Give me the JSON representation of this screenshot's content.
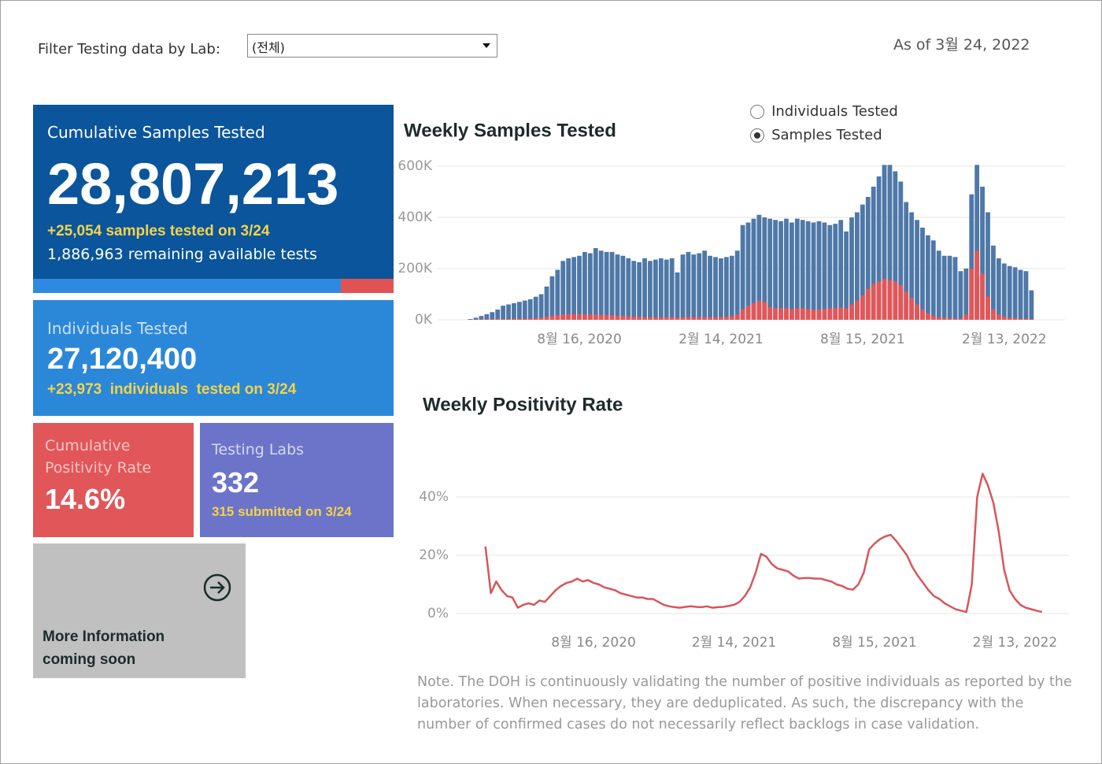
{
  "filter": {
    "label": "Filter Testing data by Lab:",
    "selected": "(전체)"
  },
  "as_of": "As of 3월 24, 2022",
  "toggle": {
    "options": [
      "Individuals Tested",
      "Samples Tested"
    ],
    "selected": 1
  },
  "tiles": {
    "samples": {
      "title": "Cumulative Samples Tested",
      "value": "28,807,213",
      "change": "+25,054 samples tested on 3/24",
      "remaining": "1,886,963 remaining available tests"
    },
    "individuals": {
      "title": "Individuals Tested",
      "value": "27,120,400",
      "change": "+23,973  individuals  tested on 3/24"
    },
    "positivity": {
      "title": "Cumulative Positivity Rate",
      "value": "14.6%"
    },
    "labs": {
      "title": "Testing Labs",
      "value": "332",
      "change": "315 submitted on 3/24"
    },
    "more": {
      "text": "More Information coming soon"
    }
  },
  "note": "Note. The DOH is continuously validating the number of positive individuals as reported by the laboratories. When necessary, they are deduplicated. As such, the discrepancy with the number of confirmed cases do not necessarily reflect backlogs in case validation.",
  "chart_data": [
    {
      "type": "bar",
      "title": "Weekly Samples Tested",
      "categories": [
        null,
        null,
        null,
        null,
        null,
        null,
        null,
        null,
        null,
        null,
        null,
        null,
        null,
        null,
        null,
        null,
        null,
        null,
        null,
        null,
        "8월 16, 2020",
        null,
        null,
        null,
        null,
        null,
        null,
        null,
        null,
        null,
        null,
        null,
        null,
        null,
        null,
        null,
        null,
        null,
        null,
        null,
        null,
        null,
        null,
        null,
        null,
        null,
        "2월 14, 2021",
        null,
        null,
        null,
        null,
        null,
        null,
        null,
        null,
        null,
        null,
        null,
        null,
        null,
        null,
        null,
        null,
        null,
        null,
        null,
        null,
        null,
        null,
        null,
        null,
        null,
        "8월 15, 2021",
        null,
        null,
        null,
        null,
        null,
        null,
        null,
        null,
        null,
        null,
        null,
        null,
        null,
        null,
        null,
        null,
        null,
        null,
        null,
        null,
        null,
        null,
        null,
        null,
        null,
        "2월 13, 2022",
        null,
        null,
        null,
        null,
        null
      ],
      "series": [
        {
          "color": "#4e78a8",
          "values": [
            3000,
            8000,
            15000,
            22000,
            30000,
            40000,
            55000,
            60000,
            65000,
            70000,
            75000,
            80000,
            90000,
            100000,
            130000,
            170000,
            195000,
            230000,
            240000,
            245000,
            250000,
            265000,
            260000,
            280000,
            270000,
            265000,
            265000,
            255000,
            250000,
            240000,
            230000,
            225000,
            240000,
            230000,
            235000,
            240000,
            235000,
            240000,
            185000,
            255000,
            265000,
            255000,
            260000,
            270000,
            250000,
            245000,
            240000,
            245000,
            250000,
            270000,
            370000,
            380000,
            395000,
            410000,
            400000,
            395000,
            390000,
            385000,
            395000,
            380000,
            395000,
            390000,
            385000,
            380000,
            385000,
            380000,
            370000,
            375000,
            390000,
            345000,
            400000,
            420000,
            450000,
            480000,
            520000,
            560000,
            605000,
            605000,
            580000,
            540000,
            460000,
            420000,
            390000,
            360000,
            330000,
            310000,
            270000,
            250000,
            250000,
            245000,
            190000,
            200000,
            490000,
            605000,
            520000,
            420000,
            290000,
            240000,
            220000,
            210000,
            205000,
            195000,
            190000,
            115000
          ]
        },
        {
          "color": "#e15759",
          "values": [
            1000,
            1000,
            2000,
            2000,
            2000,
            3000,
            3000,
            3000,
            4000,
            4000,
            5000,
            5000,
            6000,
            8000,
            12000,
            15000,
            18000,
            20000,
            22000,
            22000,
            22000,
            21000,
            20000,
            20000,
            19000,
            18000,
            17000,
            16000,
            15000,
            14000,
            12000,
            12000,
            11000,
            10000,
            10000,
            10000,
            10000,
            10000,
            8000,
            10000,
            11000,
            10000,
            10000,
            10000,
            10000,
            10000,
            11000,
            12000,
            14000,
            20000,
            40000,
            55000,
            65000,
            75000,
            70000,
            50000,
            45000,
            45000,
            45000,
            42000,
            45000,
            45000,
            42000,
            40000,
            40000,
            42000,
            45000,
            45000,
            48000,
            45000,
            60000,
            75000,
            95000,
            120000,
            140000,
            150000,
            160000,
            155000,
            150000,
            135000,
            110000,
            85000,
            60000,
            40000,
            25000,
            15000,
            10000,
            8000,
            6000,
            5000,
            5000,
            20000,
            200000,
            270000,
            180000,
            90000,
            40000,
            20000,
            12000,
            8000,
            6000,
            5000,
            4000,
            3000
          ]
        }
      ],
      "ylim": [
        0,
        600000
      ],
      "yticks": [
        {
          "value": 0,
          "label": "0K"
        },
        {
          "value": 200000,
          "label": "200K"
        },
        {
          "value": 400000,
          "label": "400K"
        },
        {
          "value": 600000,
          "label": "600K"
        }
      ],
      "grid": true
    },
    {
      "type": "line",
      "title": "Weekly Positivity Rate",
      "categories": [
        null,
        null,
        null,
        null,
        null,
        null,
        null,
        null,
        null,
        null,
        null,
        null,
        null,
        null,
        null,
        null,
        null,
        null,
        null,
        null,
        "8월 16, 2020",
        null,
        null,
        null,
        null,
        null,
        null,
        null,
        null,
        null,
        null,
        null,
        null,
        null,
        null,
        null,
        null,
        null,
        null,
        null,
        null,
        null,
        null,
        null,
        null,
        null,
        "2월 14, 2021",
        null,
        null,
        null,
        null,
        null,
        null,
        null,
        null,
        null,
        null,
        null,
        null,
        null,
        null,
        null,
        null,
        null,
        null,
        null,
        null,
        null,
        null,
        null,
        null,
        null,
        "8월 15, 2021",
        null,
        null,
        null,
        null,
        null,
        null,
        null,
        null,
        null,
        null,
        null,
        null,
        null,
        null,
        null,
        null,
        null,
        null,
        null,
        null,
        null,
        null,
        null,
        null,
        null,
        "2월 13, 2022",
        null,
        null,
        null,
        null,
        null
      ],
      "series": [
        {
          "color": "#d6575c",
          "values": [
            23,
            7,
            11,
            8,
            6,
            5.5,
            2,
            3,
            3.5,
            3,
            4.5,
            4,
            6,
            8,
            9.5,
            10.5,
            11,
            12,
            11,
            11.5,
            10.5,
            10,
            9,
            8.5,
            8,
            7,
            6.5,
            6,
            5.5,
            5.5,
            5,
            5,
            4,
            3,
            2.5,
            2.2,
            2,
            2.3,
            2.5,
            2.3,
            2.2,
            2.5,
            2,
            2.2,
            2.3,
            2.6,
            3,
            4,
            6,
            9,
            14,
            20.5,
            19.5,
            17,
            15.5,
            15,
            14.5,
            13,
            12,
            12.2,
            12.2,
            12,
            12,
            11.5,
            11,
            10,
            9.5,
            8.5,
            8.2,
            10,
            14,
            22,
            24,
            25.5,
            26.5,
            27,
            25,
            22.5,
            20,
            16,
            13,
            10.5,
            8,
            6,
            5,
            3.5,
            2.5,
            1.5,
            1,
            0.5,
            10,
            40,
            48,
            44,
            38,
            28,
            15,
            8,
            5,
            3,
            2,
            1.5,
            1,
            0.5
          ]
        }
      ],
      "ylim": [
        0,
        50
      ],
      "yticks": [
        {
          "value": 0,
          "label": "0%"
        },
        {
          "value": 20,
          "label": "20%"
        },
        {
          "value": 40,
          "label": "40%"
        }
      ],
      "grid": true
    }
  ]
}
